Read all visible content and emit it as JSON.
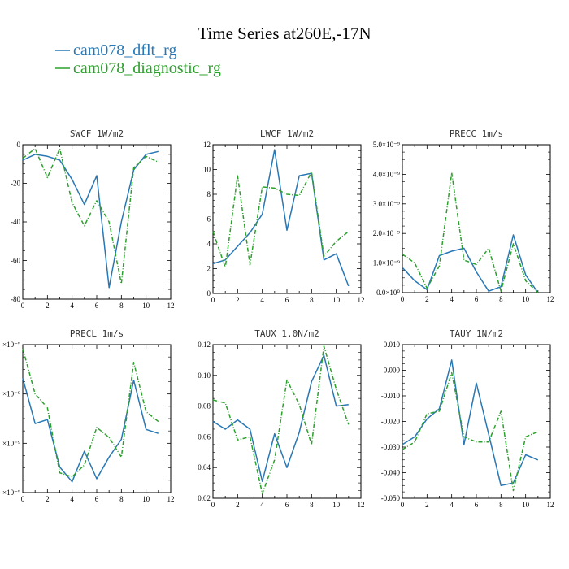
{
  "figure": {
    "title": "Time Series at260E,-17N",
    "legend": [
      {
        "label": "cam078_dflt_rg",
        "color": "#2878b5"
      },
      {
        "label": "cam078_diagnostic_rg",
        "color": "#2ca02c"
      }
    ]
  },
  "chart_data": [
    {
      "type": "line",
      "title": "SWCF   1W/m2",
      "x": [
        0,
        1,
        2,
        3,
        4,
        5,
        6,
        7,
        8,
        9,
        10,
        11
      ],
      "xlim": [
        0,
        12
      ],
      "xticks": [
        "0",
        "2",
        "4",
        "6",
        "8",
        "10",
        "12"
      ],
      "ylim": [
        -80,
        0
      ],
      "yticks": [
        "0",
        "-20",
        "-40",
        "-60",
        "-80"
      ],
      "series": [
        {
          "name": "cam078_dflt_rg",
          "color": "#2878b5",
          "dashed": false,
          "values": [
            -8,
            -5,
            -6,
            -8,
            -18,
            -31,
            -16,
            -74,
            -40,
            -13,
            -5,
            -3.5
          ]
        },
        {
          "name": "cam078_diagnostic_rg",
          "color": "#2ca02c",
          "dashed": true,
          "values": [
            -7,
            -2,
            -17,
            -2,
            -30,
            -42,
            -29,
            -40,
            -72,
            -12,
            -6,
            -9
          ]
        }
      ]
    },
    {
      "type": "line",
      "title": "LWCF   1W/m2",
      "x": [
        0,
        1,
        2,
        3,
        4,
        5,
        6,
        7,
        8,
        9,
        10,
        11
      ],
      "xlim": [
        0,
        12
      ],
      "xticks": [
        "0",
        "2",
        "4",
        "6",
        "8",
        "10",
        "12"
      ],
      "ylim": [
        0,
        12
      ],
      "yticks": [
        "12",
        "10",
        "8",
        "6",
        "4",
        "2",
        "0"
      ],
      "series": [
        {
          "name": "cam078_dflt_rg",
          "color": "#2878b5",
          "dashed": false,
          "values": [
            2.4,
            2.7,
            3.8,
            4.9,
            6.4,
            11.6,
            5.1,
            9.5,
            9.7,
            2.7,
            3.2,
            0.6
          ]
        },
        {
          "name": "cam078_diagnostic_rg",
          "color": "#2ca02c",
          "dashed": true,
          "values": [
            5.0,
            2.1,
            9.5,
            2.3,
            8.6,
            8.5,
            8.0,
            7.9,
            9.8,
            3.0,
            4.2,
            5.0
          ]
        }
      ]
    },
    {
      "type": "line",
      "title": "PRECC   1m/s",
      "x": [
        0,
        1,
        2,
        3,
        4,
        5,
        6,
        7,
        8,
        9,
        10,
        11
      ],
      "xlim": [
        0,
        12
      ],
      "xticks": [
        "0",
        "2",
        "4",
        "6",
        "8",
        "10",
        "12"
      ],
      "ylim": [
        0,
        5
      ],
      "yticks": [
        "5.0×10⁻⁹",
        "4.0×10⁻⁹",
        "3.0×10⁻⁹",
        "2.0×10⁻⁹",
        "1.0×10⁻⁹",
        "0.0×10⁰"
      ],
      "series": [
        {
          "name": "cam078_dflt_rg",
          "color": "#2878b5",
          "dashed": false,
          "values": [
            0.85,
            0.4,
            0.1,
            1.25,
            1.4,
            1.5,
            0.7,
            0.05,
            0.2,
            1.95,
            0.6,
            0.0
          ]
        },
        {
          "name": "cam078_diagnostic_rg",
          "color": "#2ca02c",
          "dashed": true,
          "values": [
            1.3,
            1.0,
            0.15,
            0.9,
            4.05,
            1.1,
            0.95,
            1.5,
            0.05,
            1.65,
            0.4,
            0.0
          ]
        }
      ]
    },
    {
      "type": "line",
      "title": "PRECL   1m/s",
      "x": [
        0,
        1,
        2,
        3,
        4,
        5,
        6,
        7,
        8,
        9,
        10,
        11
      ],
      "xlim": [
        0,
        12
      ],
      "xticks": [
        "0",
        "2",
        "4",
        "6",
        "8",
        "10",
        "12"
      ],
      "ylim": [
        0,
        7.5
      ],
      "yticks": [
        "×10⁻⁹",
        "×10⁻⁹",
        "×10⁻⁹",
        "×10⁻⁹"
      ],
      "series": [
        {
          "name": "cam078_dflt_rg",
          "color": "#2878b5",
          "dashed": false,
          "values": [
            5.8,
            3.5,
            3.7,
            1.3,
            0.55,
            2.1,
            0.7,
            1.8,
            2.7,
            5.7,
            3.2,
            3.0
          ]
        },
        {
          "name": "cam078_diagnostic_rg",
          "color": "#2ca02c",
          "dashed": true,
          "values": [
            7.3,
            5.0,
            4.3,
            1.0,
            0.8,
            1.4,
            3.3,
            2.8,
            1.8,
            6.6,
            4.1,
            3.6
          ]
        }
      ]
    },
    {
      "type": "line",
      "title": "TAUX   1.0N/m2",
      "x": [
        0,
        1,
        2,
        3,
        4,
        5,
        6,
        7,
        8,
        9,
        10,
        11
      ],
      "xlim": [
        0,
        12
      ],
      "xticks": [
        "0",
        "2",
        "4",
        "6",
        "8",
        "10",
        "12"
      ],
      "ylim": [
        0.02,
        0.12
      ],
      "yticks": [
        "0.12",
        "0.10",
        "0.08",
        "0.06",
        "0.04",
        "0.02"
      ],
      "series": [
        {
          "name": "cam078_dflt_rg",
          "color": "#2878b5",
          "dashed": false,
          "values": [
            0.07,
            0.065,
            0.071,
            0.065,
            0.031,
            0.062,
            0.04,
            0.063,
            0.096,
            0.113,
            0.08,
            0.081
          ]
        },
        {
          "name": "cam078_diagnostic_rg",
          "color": "#2ca02c",
          "dashed": true,
          "values": [
            0.084,
            0.082,
            0.058,
            0.06,
            0.023,
            0.045,
            0.097,
            0.081,
            0.055,
            0.119,
            0.091,
            0.068
          ]
        }
      ]
    },
    {
      "type": "line",
      "title": "TAUY   1N/m2",
      "x": [
        0,
        1,
        2,
        3,
        4,
        5,
        6,
        7,
        8,
        9,
        10,
        11
      ],
      "xlim": [
        0,
        12
      ],
      "xticks": [
        "0",
        "2",
        "4",
        "6",
        "8",
        "10",
        "12"
      ],
      "ylim": [
        -0.05,
        0.01
      ],
      "yticks": [
        "0.010",
        "0.000",
        "-0.010",
        "-0.020",
        "-0.030",
        "-0.040",
        "-0.050"
      ],
      "series": [
        {
          "name": "cam078_dflt_rg",
          "color": "#2878b5",
          "dashed": false,
          "values": [
            -0.029,
            -0.026,
            -0.019,
            -0.015,
            0.004,
            -0.029,
            -0.005,
            -0.025,
            -0.045,
            -0.044,
            -0.033,
            -0.035
          ]
        },
        {
          "name": "cam078_diagnostic_rg",
          "color": "#2ca02c",
          "dashed": true,
          "values": [
            -0.031,
            -0.028,
            -0.017,
            -0.016,
            -0.001,
            -0.026,
            -0.028,
            -0.028,
            -0.016,
            -0.047,
            -0.026,
            -0.024
          ]
        }
      ]
    }
  ]
}
